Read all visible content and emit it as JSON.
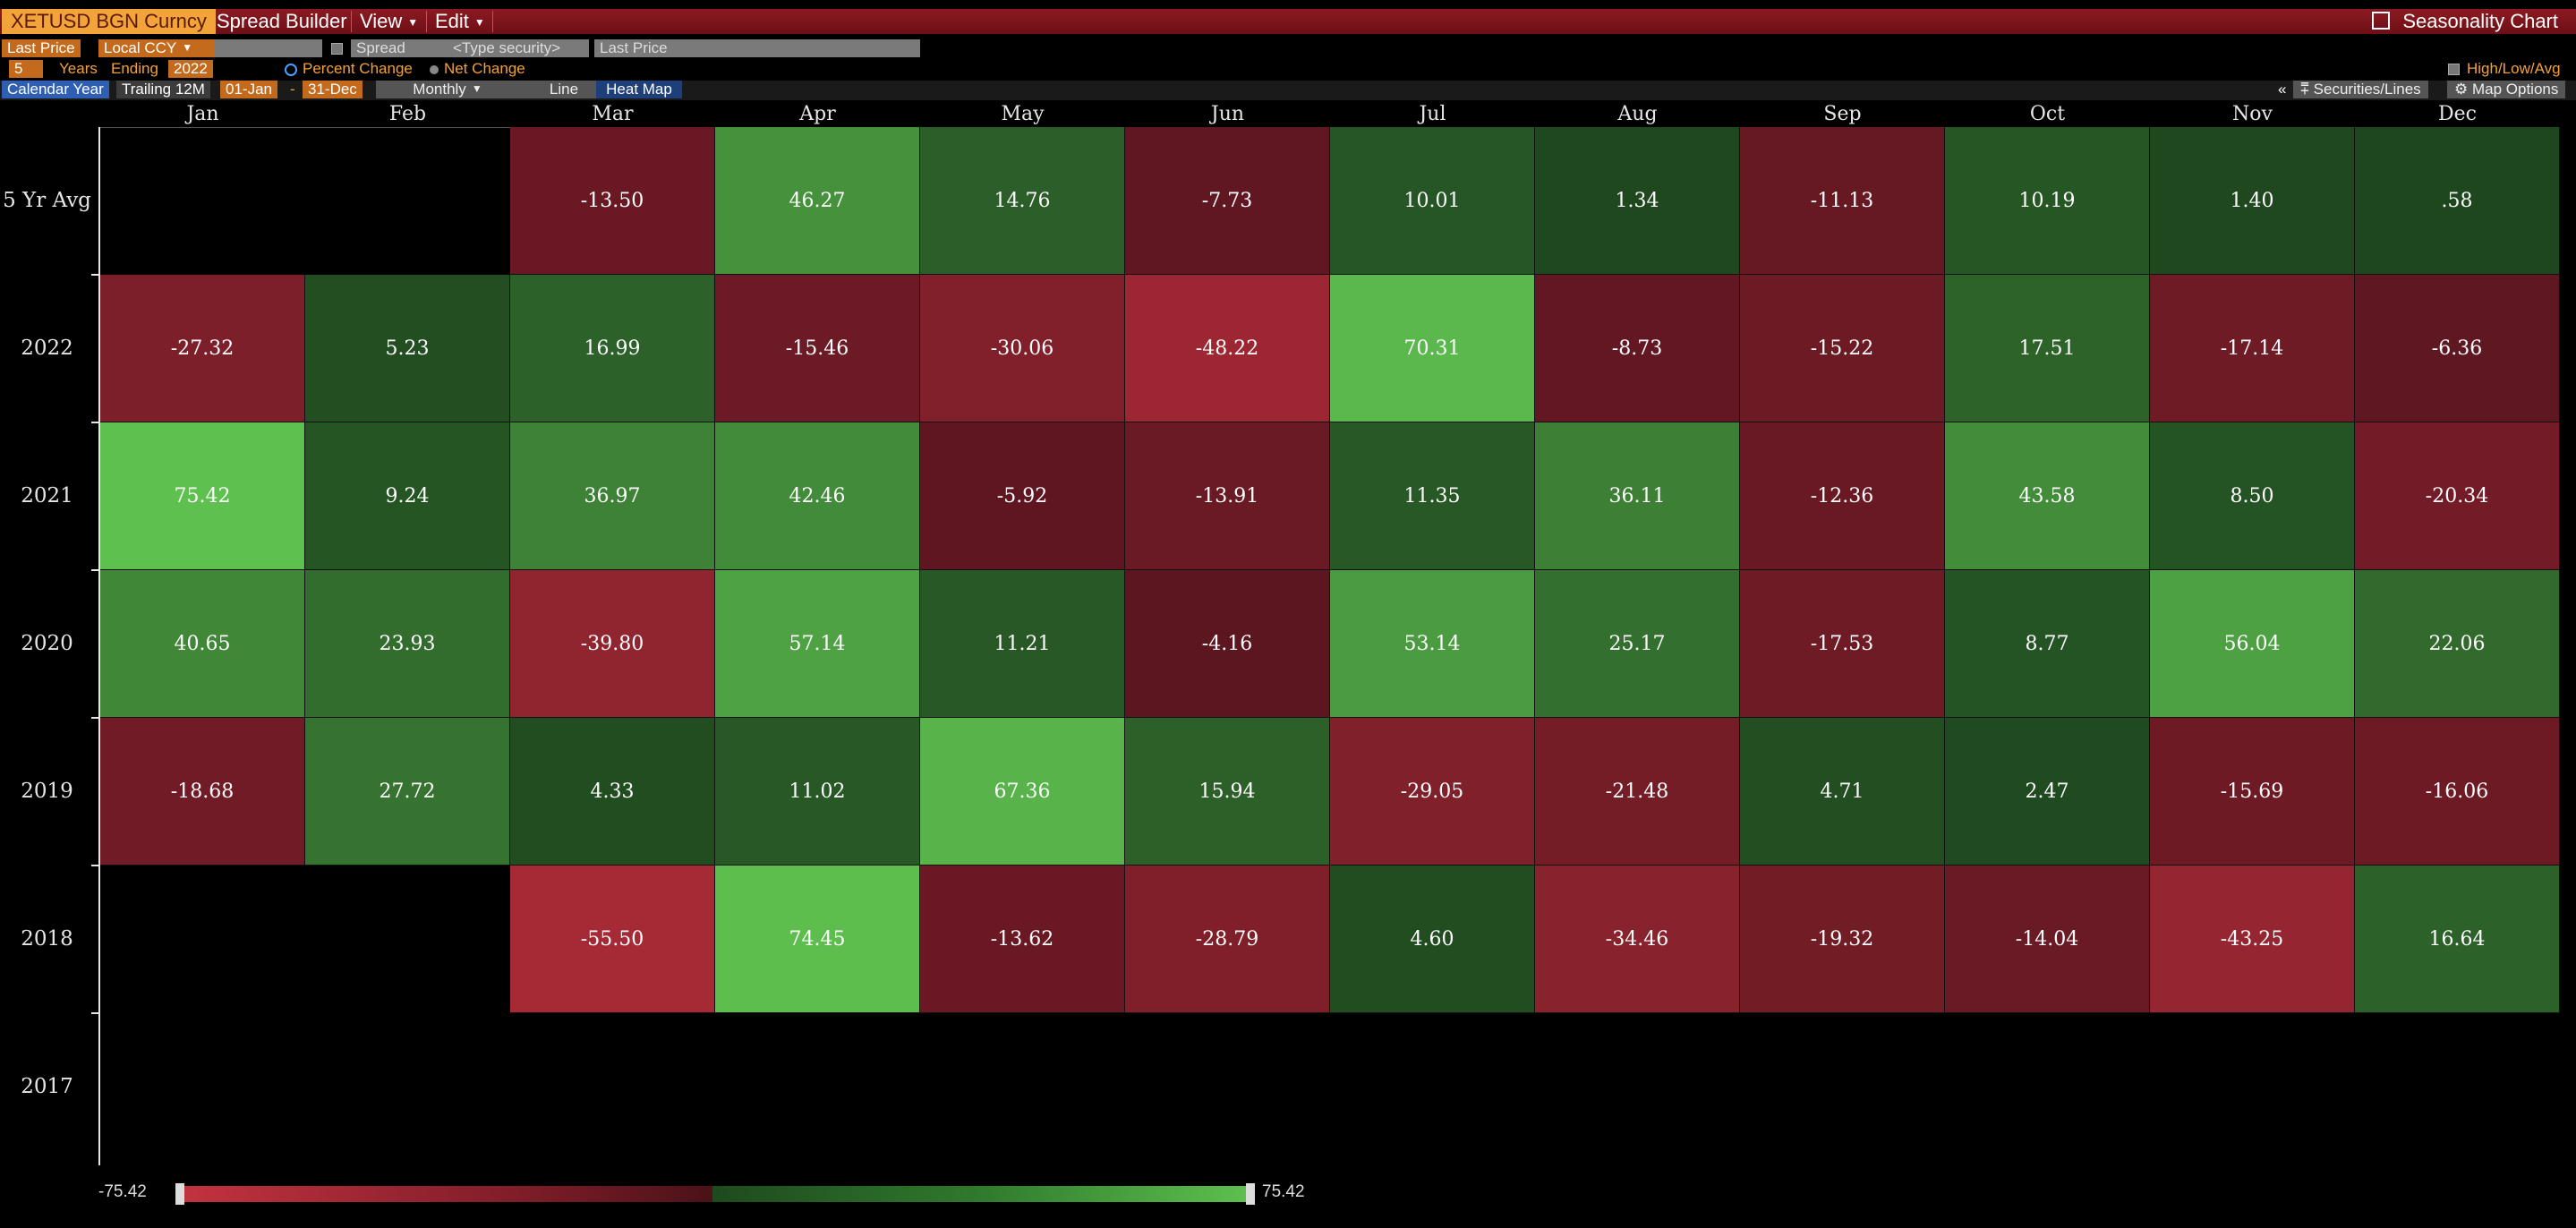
{
  "titlebar": {
    "ticker": "XETUSD BGN Curncy",
    "menu": [
      "Spread Builder",
      "View",
      "Edit"
    ],
    "chart_title": "Seasonality Chart"
  },
  "controls": {
    "price_field": "Last Price",
    "currency": "Local CCY",
    "spread_label": "Spread",
    "security_placeholder": "<Type security>",
    "spread_field": "Last Price",
    "years": "5",
    "years_label": "Years",
    "ending_label": "Ending",
    "ending_year": "2022",
    "mode_percent": "Percent Change",
    "mode_net": "Net Change",
    "high_low_avg": "High/Low/Avg",
    "calendar_year": "Calendar Year",
    "trailing": "Trailing 12M",
    "start_date": "01-Jan",
    "end_date": "31-Dec",
    "period": "Monthly",
    "view_line": "Line",
    "view_heatmap": "Heat Map",
    "collapse": "«",
    "securities_lines": "Securities/Lines",
    "map_options": "Map Options"
  },
  "colors": {
    "title_bar": "#7a1520",
    "ticker_bg": "#f2a33a",
    "strong_red": "#c33340",
    "strong_green": "#5ec04f"
  },
  "chart_data": {
    "type": "heatmap",
    "categories": [
      "Jan",
      "Feb",
      "Mar",
      "Apr",
      "May",
      "Jun",
      "Jul",
      "Aug",
      "Sep",
      "Oct",
      "Nov",
      "Dec"
    ],
    "rows": [
      {
        "label": "5 Yr Avg",
        "values": [
          null,
          null,
          "-13.50",
          "46.27",
          "14.76",
          "-7.73",
          "10.01",
          "1.34",
          "-11.13",
          "10.19",
          "1.40",
          ".58"
        ]
      },
      {
        "label": "2022",
        "values": [
          "-27.32",
          "5.23",
          "16.99",
          "-15.46",
          "-30.06",
          "-48.22",
          "70.31",
          "-8.73",
          "-15.22",
          "17.51",
          "-17.14",
          "-6.36"
        ]
      },
      {
        "label": "2021",
        "values": [
          "75.42",
          "9.24",
          "36.97",
          "42.46",
          "-5.92",
          "-13.91",
          "11.35",
          "36.11",
          "-12.36",
          "43.58",
          "8.50",
          "-20.34"
        ]
      },
      {
        "label": "2020",
        "values": [
          "40.65",
          "23.93",
          "-39.80",
          "57.14",
          "11.21",
          "-4.16",
          "53.14",
          "25.17",
          "-17.53",
          "8.77",
          "56.04",
          "22.06"
        ]
      },
      {
        "label": "2019",
        "values": [
          "-18.68",
          "27.72",
          "4.33",
          "11.02",
          "67.36",
          "15.94",
          "-29.05",
          "-21.48",
          "4.71",
          "2.47",
          "-15.69",
          "-16.06"
        ]
      },
      {
        "label": "2018",
        "values": [
          null,
          null,
          "-55.50",
          "74.45",
          "-13.62",
          "-28.79",
          "4.60",
          "-34.46",
          "-19.32",
          "-14.04",
          "-43.25",
          "16.64"
        ]
      },
      {
        "label": "2017",
        "values": [
          null,
          null,
          null,
          null,
          null,
          null,
          null,
          null,
          null,
          null,
          null,
          null
        ]
      }
    ],
    "scale_min": "-75.42",
    "scale_max": "75.42"
  }
}
